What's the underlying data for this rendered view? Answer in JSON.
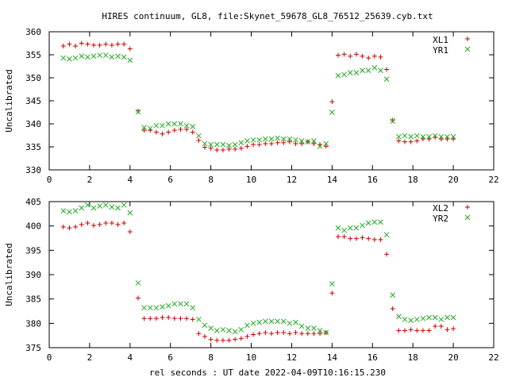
{
  "figure_title": "HIRES continuum, GL8, file:Skynet_59678_GL8_76512_25639.cyb.txt",
  "xlabel": "rel seconds : UT date 2022-04-09T10:16:15.230",
  "colors": {
    "red_series": "#cc0000",
    "green_series": "#22aa22",
    "axes": "#000000",
    "background": "#ffffff"
  },
  "chart_data": [
    {
      "type": "scatter",
      "ylabel": "Uncalibrated",
      "xlim": [
        0,
        22
      ],
      "ylim": [
        330,
        360
      ],
      "x_ticks": [
        0,
        2,
        4,
        6,
        8,
        10,
        12,
        14,
        16,
        18,
        20,
        22
      ],
      "y_ticks": [
        330,
        335,
        340,
        345,
        350,
        355,
        360
      ],
      "grid": false,
      "legend_position": "top-right",
      "series": [
        {
          "name": "XL1",
          "marker": "plus",
          "color": "#cc0000",
          "x": [
            0.7,
            1.0,
            1.3,
            1.6,
            1.9,
            2.2,
            2.5,
            2.8,
            3.1,
            3.4,
            3.7,
            4.0,
            4.4,
            4.7,
            5.0,
            5.3,
            5.6,
            5.9,
            6.2,
            6.5,
            6.8,
            7.1,
            7.4,
            7.7,
            8.0,
            8.3,
            8.6,
            8.9,
            9.2,
            9.5,
            9.8,
            10.1,
            10.4,
            10.7,
            11.0,
            11.3,
            11.6,
            11.9,
            12.2,
            12.5,
            12.8,
            13.1,
            13.4,
            13.7,
            14.0,
            14.3,
            14.6,
            14.9,
            15.2,
            15.5,
            15.8,
            16.1,
            16.4,
            16.7,
            17.0,
            17.3,
            17.6,
            17.9,
            18.2,
            18.5,
            18.8,
            19.1,
            19.4,
            19.7,
            20.0
          ],
          "y": [
            356.9,
            357.3,
            356.9,
            357.5,
            357.3,
            357.1,
            357.1,
            357.3,
            357.1,
            357.3,
            357.3,
            356.3,
            342.8,
            338.6,
            338.6,
            338.2,
            337.8,
            338.2,
            338.6,
            338.8,
            338.8,
            338.2,
            336.4,
            334.9,
            334.7,
            334.3,
            334.3,
            334.5,
            334.5,
            334.7,
            335.1,
            335.5,
            335.5,
            335.7,
            335.7,
            335.9,
            335.9,
            336.1,
            335.7,
            335.7,
            336.1,
            335.7,
            335.5,
            335.1,
            344.8,
            354.9,
            355.1,
            354.7,
            355.1,
            354.7,
            354.3,
            354.7,
            354.5,
            351.8,
            340.8,
            336.3,
            336.1,
            336.1,
            336.3,
            336.7,
            336.7,
            337.1,
            336.7,
            336.7,
            336.7
          ]
        },
        {
          "name": "YR1",
          "marker": "cross",
          "color": "#22aa22",
          "x": [
            0.7,
            1.0,
            1.3,
            1.6,
            1.9,
            2.2,
            2.5,
            2.8,
            3.1,
            3.4,
            3.7,
            4.0,
            4.4,
            4.7,
            5.0,
            5.3,
            5.6,
            5.9,
            6.2,
            6.5,
            6.8,
            7.1,
            7.4,
            7.7,
            8.0,
            8.3,
            8.6,
            8.9,
            9.2,
            9.5,
            9.8,
            10.1,
            10.4,
            10.7,
            11.0,
            11.3,
            11.6,
            11.9,
            12.2,
            12.5,
            12.8,
            13.1,
            13.4,
            13.7,
            14.0,
            14.3,
            14.6,
            14.9,
            15.2,
            15.5,
            15.8,
            16.1,
            16.4,
            16.7,
            17.0,
            17.3,
            17.6,
            17.9,
            18.2,
            18.5,
            18.8,
            19.1,
            19.4,
            19.7,
            20.0
          ],
          "y": [
            354.3,
            354.1,
            354.3,
            354.7,
            354.5,
            354.7,
            354.9,
            354.9,
            354.5,
            354.7,
            354.5,
            353.8,
            342.6,
            339.2,
            339.0,
            339.6,
            339.6,
            340.0,
            340.0,
            340.0,
            339.6,
            339.4,
            337.4,
            335.7,
            335.5,
            335.5,
            335.5,
            335.3,
            335.5,
            335.9,
            336.3,
            336.5,
            336.5,
            336.7,
            336.7,
            336.9,
            336.7,
            336.7,
            336.5,
            336.3,
            336.1,
            336.3,
            335.1,
            335.7,
            342.5,
            350.5,
            350.7,
            351.1,
            351.1,
            351.6,
            351.6,
            352.2,
            351.6,
            349.7,
            340.6,
            337.2,
            337.4,
            337.2,
            337.4,
            337.2,
            337.2,
            337.4,
            337.2,
            337.2,
            337.2
          ]
        }
      ]
    },
    {
      "type": "scatter",
      "ylabel": "Uncalibrated",
      "xlim": [
        0,
        22
      ],
      "ylim": [
        375,
        405
      ],
      "x_ticks": [
        0,
        2,
        4,
        6,
        8,
        10,
        12,
        14,
        16,
        18,
        20,
        22
      ],
      "y_ticks": [
        375,
        380,
        385,
        390,
        395,
        400,
        405
      ],
      "grid": false,
      "legend_position": "top-right",
      "series": [
        {
          "name": "XL2",
          "marker": "plus",
          "color": "#cc0000",
          "x": [
            0.7,
            1.0,
            1.3,
            1.6,
            1.9,
            2.2,
            2.5,
            2.8,
            3.1,
            3.4,
            3.7,
            4.0,
            4.4,
            4.7,
            5.0,
            5.3,
            5.6,
            5.9,
            6.2,
            6.5,
            6.8,
            7.1,
            7.4,
            7.7,
            8.0,
            8.3,
            8.6,
            8.9,
            9.2,
            9.5,
            9.8,
            10.1,
            10.4,
            10.7,
            11.0,
            11.3,
            11.6,
            11.9,
            12.2,
            12.5,
            12.8,
            13.1,
            13.4,
            13.7,
            14.0,
            14.3,
            14.6,
            14.9,
            15.2,
            15.5,
            15.8,
            16.1,
            16.4,
            16.7,
            17.0,
            17.3,
            17.6,
            17.9,
            18.2,
            18.5,
            18.8,
            19.1,
            19.4,
            19.7,
            20.0
          ],
          "y": [
            399.8,
            399.6,
            399.8,
            400.3,
            400.6,
            400.1,
            400.3,
            400.6,
            400.6,
            400.3,
            400.6,
            398.8,
            385.2,
            381.0,
            381.0,
            381.0,
            381.2,
            381.2,
            381.0,
            381.0,
            381.0,
            380.8,
            377.9,
            377.3,
            376.7,
            376.5,
            376.5,
            376.5,
            376.7,
            376.9,
            377.3,
            377.7,
            377.9,
            378.1,
            377.9,
            378.1,
            378.1,
            377.9,
            378.1,
            377.9,
            377.9,
            377.9,
            377.9,
            378.1,
            386.2,
            397.8,
            397.8,
            397.4,
            397.4,
            397.6,
            397.4,
            397.2,
            397.2,
            394.2,
            383.0,
            378.5,
            378.5,
            378.7,
            378.5,
            378.5,
            378.5,
            379.4,
            379.4,
            378.7,
            378.9
          ]
        },
        {
          "name": "YR2",
          "marker": "cross",
          "color": "#22aa22",
          "x": [
            0.7,
            1.0,
            1.3,
            1.6,
            1.9,
            2.2,
            2.5,
            2.8,
            3.1,
            3.4,
            3.7,
            4.0,
            4.4,
            4.7,
            5.0,
            5.3,
            5.6,
            5.9,
            6.2,
            6.5,
            6.8,
            7.1,
            7.4,
            7.7,
            8.0,
            8.3,
            8.6,
            8.9,
            9.2,
            9.5,
            9.8,
            10.1,
            10.4,
            10.7,
            11.0,
            11.3,
            11.6,
            11.9,
            12.2,
            12.5,
            12.8,
            13.1,
            13.4,
            13.7,
            14.0,
            14.3,
            14.6,
            14.9,
            15.2,
            15.5,
            15.8,
            16.1,
            16.4,
            16.7,
            17.0,
            17.3,
            17.6,
            17.9,
            18.2,
            18.5,
            18.8,
            19.1,
            19.4,
            19.7,
            20.0
          ],
          "y": [
            403.1,
            402.9,
            403.1,
            403.7,
            404.3,
            403.7,
            404.1,
            404.3,
            403.9,
            403.7,
            404.3,
            402.7,
            388.3,
            383.2,
            383.2,
            383.2,
            383.4,
            383.6,
            384.0,
            384.0,
            384.0,
            383.2,
            380.8,
            379.6,
            379.0,
            378.5,
            378.7,
            378.5,
            378.3,
            378.7,
            379.6,
            380.0,
            380.2,
            380.4,
            380.4,
            380.4,
            380.4,
            380.0,
            380.2,
            379.4,
            379.0,
            379.0,
            378.5,
            378.1,
            388.1,
            399.6,
            399.1,
            399.6,
            399.6,
            400.1,
            400.6,
            400.8,
            400.8,
            398.2,
            385.8,
            381.4,
            380.8,
            380.6,
            380.8,
            381.0,
            381.2,
            381.2,
            380.8,
            381.2,
            381.2
          ]
        }
      ]
    }
  ]
}
